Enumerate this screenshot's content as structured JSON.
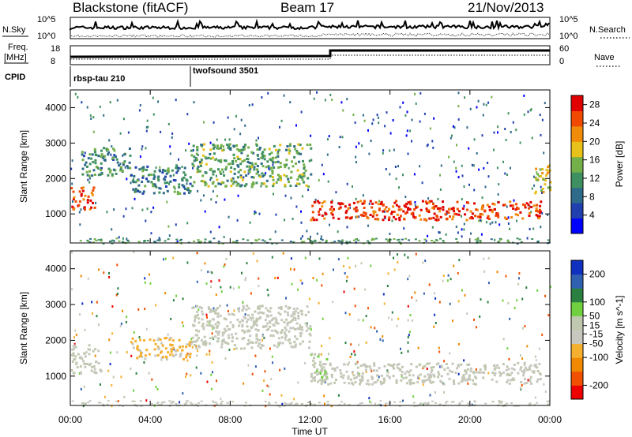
{
  "header": {
    "station": "Blackstone (fitACF)",
    "beam": "Beam 17",
    "date": "21/Nov/2013"
  },
  "strip_labels": {
    "nsky": "N.Sky",
    "nsearch": "N.Search",
    "freq_line1": "Freq.",
    "freq_line2": "[MHz]",
    "nave": "Nave",
    "cpid": "CPID"
  },
  "strip_ticks": {
    "noise_left": [
      "10^5",
      "10^0"
    ],
    "noise_right": [
      "10^5",
      "10^0"
    ],
    "freq_left": [
      "18",
      "8"
    ],
    "nave_right": [
      "60",
      "0"
    ]
  },
  "cpid_segments": [
    {
      "label": "rbsp-tau 210",
      "start_hour": 0
    },
    {
      "label": "twofsound 3501",
      "start_hour": 6
    }
  ],
  "colors": {
    "power_scale": [
      "#0000ff",
      "#2040b0",
      "#2e6a8a",
      "#3f9060",
      "#73b04a",
      "#e8c11a",
      "#f08c0a",
      "#f04a00",
      "#e00000"
    ],
    "velocity_scale": [
      "#ee0000",
      "#f05000",
      "#f08800",
      "#f5b030",
      "#c8c8c0",
      "#c0c8b0",
      "#70d040",
      "#2a8040",
      "#3060b0",
      "#1030c0"
    ]
  },
  "chart_data": [
    {
      "type": "heatmap",
      "title": "Power",
      "xlabel": "Time UT",
      "ylabel": "Slant Range [km]",
      "xlim": [
        0,
        24
      ],
      "ylim": [
        180,
        4500
      ],
      "x_ticks": [
        "00:00",
        "04:00",
        "08:00",
        "12:00",
        "16:00",
        "20:00",
        "00:00"
      ],
      "y_ticks": [
        1000,
        2000,
        3000,
        4000
      ],
      "colorbar": {
        "label": "Power [dB]",
        "ticks": [
          4,
          8,
          12,
          16,
          20,
          24,
          28
        ],
        "range": [
          0,
          30
        ]
      },
      "regions": [
        {
          "t": [
            0.0,
            1.2
          ],
          "r": [
            1150,
            1800
          ],
          "power": 25
        },
        {
          "t": [
            0.5,
            3.0
          ],
          "r": [
            2100,
            2900
          ],
          "power": 11
        },
        {
          "t": [
            3.0,
            6.0
          ],
          "r": [
            1600,
            2400
          ],
          "power": 10
        },
        {
          "t": [
            6.0,
            12.0
          ],
          "r": [
            1800,
            3000
          ],
          "power": 13
        },
        {
          "t": [
            12.0,
            23.5
          ],
          "r": [
            850,
            1400
          ],
          "power": 26
        },
        {
          "t": [
            23.2,
            24.0
          ],
          "r": [
            1500,
            2400
          ],
          "power": 18
        }
      ]
    },
    {
      "type": "heatmap",
      "title": "Velocity",
      "xlabel": "Time UT",
      "ylabel": "Slant Range [km]",
      "xlim": [
        0,
        24
      ],
      "ylim": [
        180,
        4500
      ],
      "x_ticks": [
        "00:00",
        "04:00",
        "08:00",
        "12:00",
        "16:00",
        "20:00",
        "00:00"
      ],
      "y_ticks": [
        1000,
        2000,
        3000,
        4000
      ],
      "colorbar": {
        "label": "Velocity [m s^-1]",
        "ticks": [
          200,
          100,
          50,
          15,
          -15,
          -50,
          -100,
          -200
        ],
        "range": [
          -250,
          250
        ]
      },
      "regions": [
        {
          "t": [
            0.0,
            1.5
          ],
          "r": [
            1100,
            1900
          ],
          "velocity": 0
        },
        {
          "t": [
            3.0,
            6.0
          ],
          "r": [
            1500,
            2100
          ],
          "velocity": -60
        },
        {
          "t": [
            6.0,
            12.0
          ],
          "r": [
            1800,
            3000
          ],
          "velocity": 5
        },
        {
          "t": [
            12.0,
            12.8
          ],
          "r": [
            800,
            1700
          ],
          "velocity": 40
        },
        {
          "t": [
            12.0,
            23.5
          ],
          "r": [
            800,
            1400
          ],
          "velocity": 0
        }
      ]
    }
  ]
}
